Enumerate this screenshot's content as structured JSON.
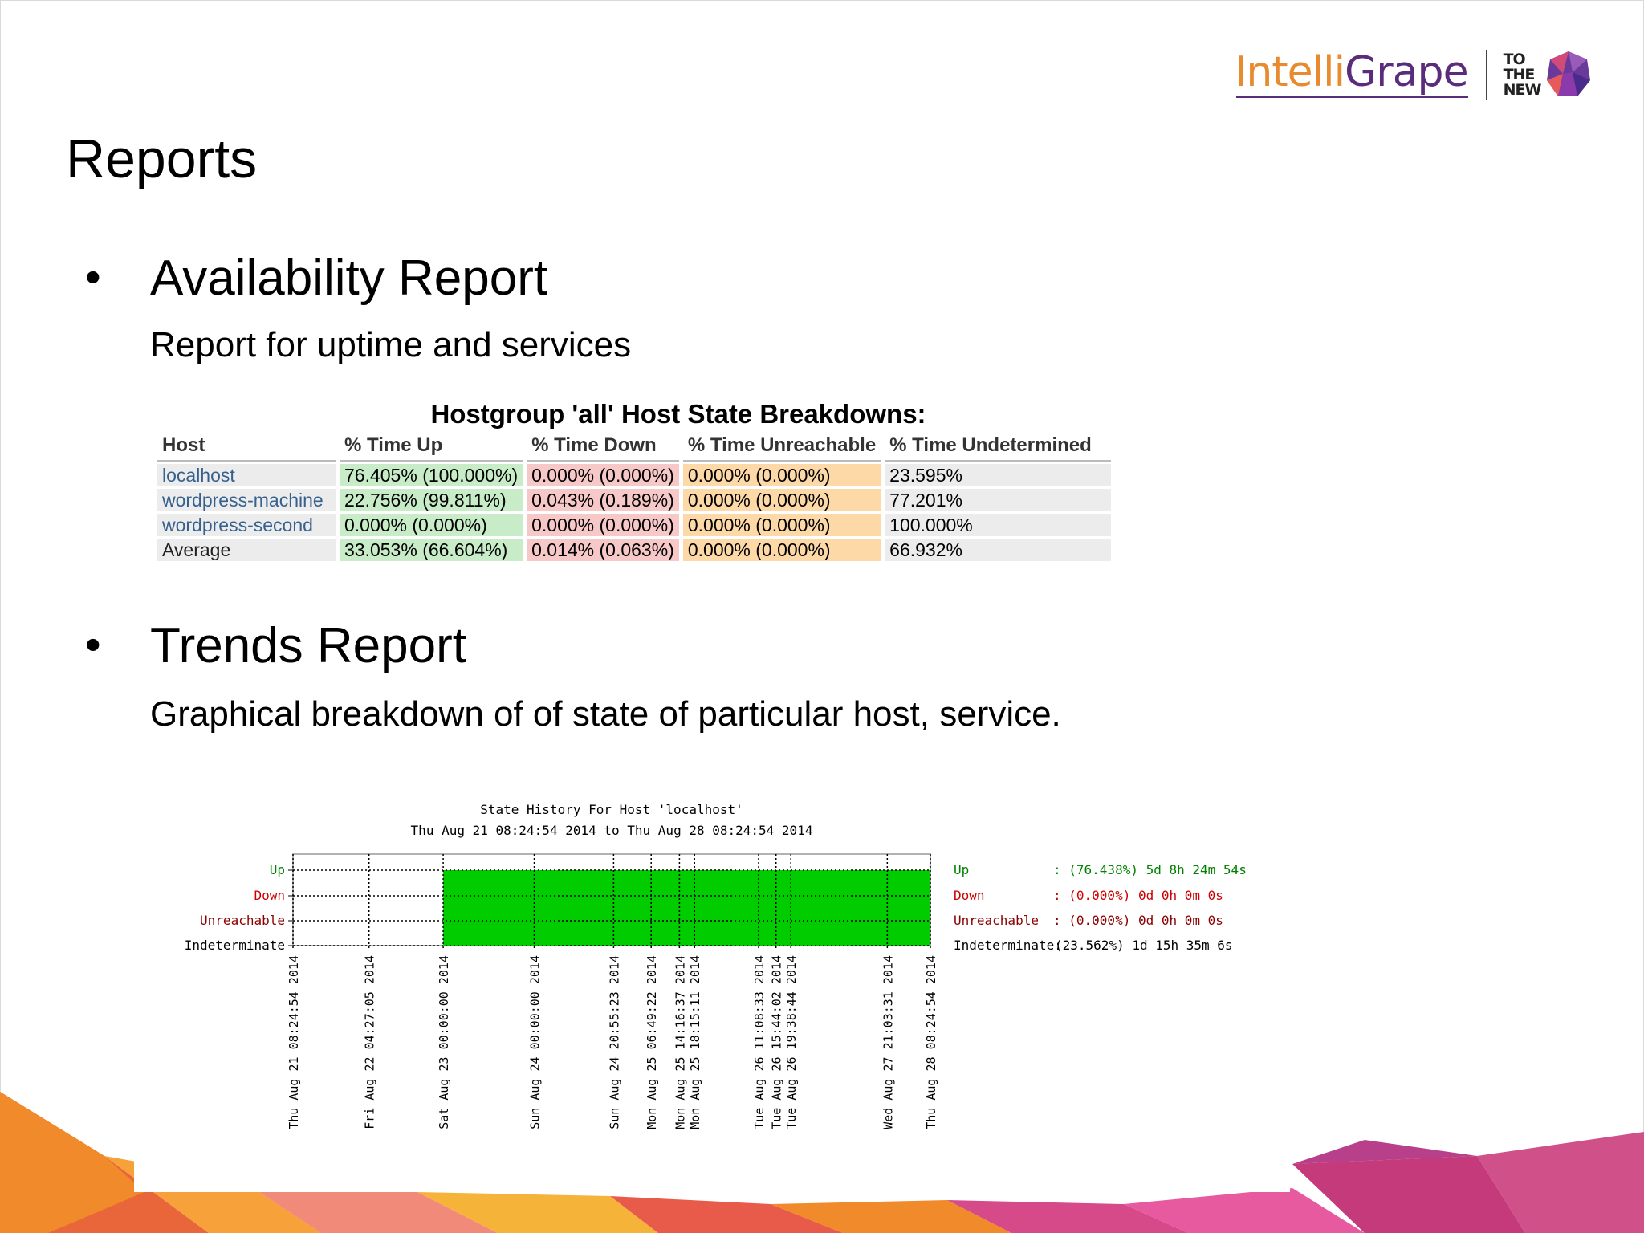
{
  "slide": {
    "title": "Reports",
    "logo": {
      "part1": "Intelli",
      "part2": "Grape",
      "tagline": [
        "TO",
        "THE",
        "NEW"
      ]
    }
  },
  "availability": {
    "heading": "Availability Report",
    "description": "Report for uptime and services",
    "table_title": "Hostgroup 'all' Host State Breakdowns:",
    "columns": [
      "Host",
      "% Time Up",
      "% Time Down",
      "% Time Unreachable",
      "% Time Undetermined"
    ],
    "rows": [
      [
        "localhost",
        "76.405% (100.000%)",
        "0.000% (0.000%)",
        "0.000% (0.000%)",
        "23.595%"
      ],
      [
        "wordpress-machine",
        "22.756% (99.811%)",
        "0.043% (0.189%)",
        "0.000% (0.000%)",
        "77.201%"
      ],
      [
        "wordpress-second",
        "0.000% (0.000%)",
        "0.000% (0.000%)",
        "0.000% (0.000%)",
        "100.000%"
      ],
      [
        "Average",
        "33.053% (66.604%)",
        "0.014% (0.063%)",
        "0.000% (0.000%)",
        "66.932%"
      ]
    ]
  },
  "trends": {
    "heading": "Trends Report",
    "description": "Graphical breakdown of of state of particular host, service."
  },
  "chart_data": {
    "type": "area",
    "title": "State History For Host 'localhost'",
    "subtitle": "Thu Aug 21 08:24:54 2014 to Thu Aug 28 08:24:54 2014",
    "states": [
      "Up",
      "Down",
      "Unreachable",
      "Indeterminate"
    ],
    "state_colors": {
      "Up": "#008000",
      "Down": "#cc0000",
      "Unreachable": "#8b0000",
      "Indeterminate": "#000000"
    },
    "fill_color": "#00cc00",
    "time_start_label": "Thu Aug 21 08:24:54 2014",
    "time_end_label": "Thu Aug 28 08:24:54 2014",
    "segments": [
      {
        "state": "Indeterminate",
        "from": "Thu Aug 21 08:24:54 2014",
        "to": "Sat Aug 23 00:00:00 2014"
      },
      {
        "state": "Up",
        "from": "Sat Aug 23 00:00:00 2014",
        "to": "Thu Aug 28 08:24:54 2014"
      }
    ],
    "tick_labels": [
      "Thu Aug 21 08:24:54 2014",
      "Fri Aug 22 04:27:05 2014",
      "Sat Aug 23 00:00:00 2014",
      "Sun Aug 24 00:00:00 2014",
      "Sun Aug 24 20:55:23 2014",
      "Mon Aug 25 06:49:22 2014",
      "Mon Aug 25 14:16:37 2014",
      "Mon Aug 25 18:15:11 2014",
      "Tue Aug 26 11:08:33 2014",
      "Tue Aug 26 15:44:02 2014",
      "Tue Aug 26 19:38:44 2014",
      "Wed Aug 27 21:03:31 2014",
      "Thu Aug 28 08:24:54 2014"
    ],
    "summary": [
      {
        "state": "Up",
        "label": "Up",
        "value": ": (76.438%) 5d 8h 24m 54s"
      },
      {
        "state": "Down",
        "label": "Down",
        "value": ": (0.000%) 0d 0h 0m 0s"
      },
      {
        "state": "Unreachable",
        "label": "Unreachable",
        "value": ": (0.000%) 0d 0h 0m 0s"
      },
      {
        "state": "Indeterminate",
        "label": "Indeterminate:",
        "value": "(23.562%) 1d 15h 35m 6s"
      }
    ]
  },
  "colors": {
    "host_link": "#36618e",
    "up_cell": "#c8ecc8",
    "down_cell": "#f7c8c8",
    "unreachable_cell": "#fdd9a8",
    "undetermined_cell": "#ececec"
  }
}
